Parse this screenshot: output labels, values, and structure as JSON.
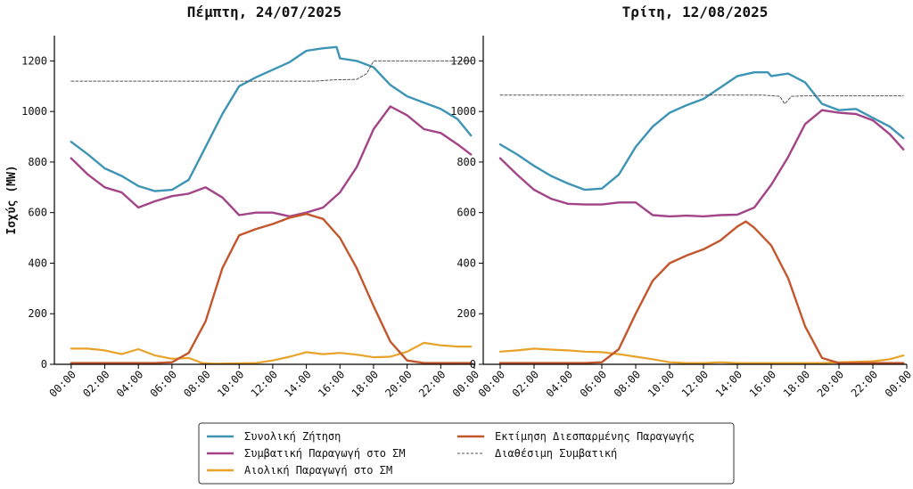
{
  "chart_data": [
    {
      "type": "line",
      "title": "Πέμπτη, 24/07/2025",
      "ylabel": "Ισχύς (MW)",
      "ylim": [
        0,
        1300
      ],
      "yticks": [
        0,
        200,
        400,
        600,
        800,
        1000,
        1200
      ],
      "xlim": [
        -1,
        24
      ],
      "xticks": [
        "00:00",
        "02:00",
        "04:00",
        "06:00",
        "08:00",
        "10:00",
        "12:00",
        "14:00",
        "16:00",
        "18:00",
        "20:00",
        "22:00",
        "00:00"
      ],
      "grid": false,
      "series": [
        {
          "name": "Συνολική Ζήτηση",
          "color": "#3d94b4",
          "dash": "",
          "width": 2.4,
          "points": [
            [
              0,
              880
            ],
            [
              1,
              830
            ],
            [
              2,
              775
            ],
            [
              3,
              745
            ],
            [
              4,
              705
            ],
            [
              5,
              685
            ],
            [
              6,
              690
            ],
            [
              7,
              730
            ],
            [
              8,
              860
            ],
            [
              9,
              990
            ],
            [
              10,
              1100
            ],
            [
              11,
              1135
            ],
            [
              12,
              1165
            ],
            [
              13,
              1195
            ],
            [
              14,
              1240
            ],
            [
              15,
              1250
            ],
            [
              15.8,
              1255
            ],
            [
              16,
              1210
            ],
            [
              17,
              1200
            ],
            [
              18,
              1175
            ],
            [
              19,
              1105
            ],
            [
              20,
              1060
            ],
            [
              21,
              1035
            ],
            [
              22,
              1010
            ],
            [
              23,
              970
            ],
            [
              23.8,
              905
            ]
          ]
        },
        {
          "name": "Συμβατική Παραγωγή στο ΣΜ",
          "color": "#a24487",
          "dash": "",
          "width": 2.4,
          "points": [
            [
              0,
              815
            ],
            [
              1,
              750
            ],
            [
              2,
              700
            ],
            [
              3,
              680
            ],
            [
              4,
              620
            ],
            [
              5,
              645
            ],
            [
              6,
              665
            ],
            [
              7,
              675
            ],
            [
              8,
              700
            ],
            [
              9,
              660
            ],
            [
              10,
              590
            ],
            [
              11,
              600
            ],
            [
              12,
              600
            ],
            [
              13,
              585
            ],
            [
              14,
              600
            ],
            [
              15,
              620
            ],
            [
              16,
              680
            ],
            [
              17,
              780
            ],
            [
              18,
              930
            ],
            [
              19,
              1020
            ],
            [
              20,
              985
            ],
            [
              21,
              930
            ],
            [
              22,
              915
            ],
            [
              23,
              870
            ],
            [
              23.8,
              830
            ]
          ]
        },
        {
          "name": "Αιολική Παραγωγή στο ΣΜ",
          "color": "#e8a22a",
          "dash": "",
          "width": 2.2,
          "points": [
            [
              0,
              62
            ],
            [
              1,
              62
            ],
            [
              2,
              55
            ],
            [
              3,
              40
            ],
            [
              4,
              60
            ],
            [
              5,
              35
            ],
            [
              6,
              22
            ],
            [
              7,
              25
            ],
            [
              7.8,
              5
            ],
            [
              8.5,
              2
            ],
            [
              11,
              5
            ],
            [
              12,
              15
            ],
            [
              13,
              30
            ],
            [
              14,
              48
            ],
            [
              15,
              40
            ],
            [
              16,
              45
            ],
            [
              17,
              38
            ],
            [
              18,
              28
            ],
            [
              19,
              30
            ],
            [
              20,
              50
            ],
            [
              21,
              85
            ],
            [
              22,
              75
            ],
            [
              23,
              70
            ],
            [
              23.8,
              70
            ]
          ]
        },
        {
          "name": "Εκτίμηση Διεσπαρμένης Παραγωγής",
          "color": "#c4562c",
          "dash": "",
          "width": 2.4,
          "points": [
            [
              0,
              5
            ],
            [
              1,
              5
            ],
            [
              2,
              5
            ],
            [
              3,
              5
            ],
            [
              4,
              5
            ],
            [
              5,
              5
            ],
            [
              6,
              8
            ],
            [
              7,
              45
            ],
            [
              8,
              170
            ],
            [
              9,
              380
            ],
            [
              10,
              510
            ],
            [
              11,
              535
            ],
            [
              12,
              555
            ],
            [
              13,
              580
            ],
            [
              14,
              595
            ],
            [
              15,
              575
            ],
            [
              16,
              500
            ],
            [
              16.5,
              440
            ],
            [
              17,
              380
            ],
            [
              18,
              230
            ],
            [
              19,
              90
            ],
            [
              20,
              15
            ],
            [
              21,
              5
            ],
            [
              22,
              5
            ],
            [
              23,
              5
            ],
            [
              23.8,
              5
            ]
          ]
        },
        {
          "name": "Διαθέσιμη Συμβατική",
          "color": "#555555",
          "dash": "3,2",
          "width": 1,
          "points": [
            [
              0,
              1120
            ],
            [
              14.5,
              1120
            ],
            [
              15.6,
              1125
            ],
            [
              17,
              1127
            ],
            [
              17.6,
              1150
            ],
            [
              18,
              1200
            ],
            [
              19,
              1200
            ],
            [
              23.8,
              1200
            ]
          ]
        }
      ]
    },
    {
      "type": "line",
      "title": "Τρίτη, 12/08/2025",
      "ylabel": "",
      "ylim": [
        0,
        1300
      ],
      "yticks": [
        0,
        200,
        400,
        600,
        800,
        1000,
        1200
      ],
      "xlim": [
        -1,
        24
      ],
      "xticks": [
        "00:00",
        "02:00",
        "04:00",
        "06:00",
        "08:00",
        "10:00",
        "12:00",
        "14:00",
        "16:00",
        "18:00",
        "20:00",
        "22:00",
        "00:00"
      ],
      "grid": false,
      "series": [
        {
          "name": "Συνολική Ζήτηση",
          "color": "#3d94b4",
          "dash": "",
          "width": 2.4,
          "points": [
            [
              0,
              870
            ],
            [
              1,
              830
            ],
            [
              2,
              785
            ],
            [
              3,
              745
            ],
            [
              4,
              715
            ],
            [
              5,
              690
            ],
            [
              6,
              695
            ],
            [
              7,
              750
            ],
            [
              8,
              860
            ],
            [
              9,
              940
            ],
            [
              10,
              995
            ],
            [
              11,
              1025
            ],
            [
              12,
              1050
            ],
            [
              13,
              1095
            ],
            [
              14,
              1140
            ],
            [
              15,
              1155
            ],
            [
              15.8,
              1155
            ],
            [
              16,
              1140
            ],
            [
              17,
              1150
            ],
            [
              18,
              1115
            ],
            [
              19,
              1030
            ],
            [
              20,
              1005
            ],
            [
              21,
              1010
            ],
            [
              22,
              975
            ],
            [
              23,
              940
            ],
            [
              23.8,
              895
            ]
          ]
        },
        {
          "name": "Συμβατική Παραγωγή στο ΣΜ",
          "color": "#a24487",
          "dash": "",
          "width": 2.4,
          "points": [
            [
              0,
              815
            ],
            [
              1,
              750
            ],
            [
              2,
              690
            ],
            [
              3,
              655
            ],
            [
              4,
              635
            ],
            [
              5,
              632
            ],
            [
              6,
              632
            ],
            [
              7,
              640
            ],
            [
              8,
              640
            ],
            [
              9,
              590
            ],
            [
              10,
              585
            ],
            [
              11,
              588
            ],
            [
              12,
              585
            ],
            [
              13,
              590
            ],
            [
              14,
              592
            ],
            [
              15,
              620
            ],
            [
              16,
              710
            ],
            [
              17,
              820
            ],
            [
              18,
              950
            ],
            [
              19,
              1005
            ],
            [
              20,
              995
            ],
            [
              21,
              990
            ],
            [
              22,
              965
            ],
            [
              23,
              910
            ],
            [
              23.8,
              850
            ]
          ]
        },
        {
          "name": "Αιολική Παραγωγή στο ΣΜ",
          "color": "#e8a22a",
          "dash": "",
          "width": 2.2,
          "points": [
            [
              0,
              50
            ],
            [
              1,
              55
            ],
            [
              2,
              62
            ],
            [
              3,
              58
            ],
            [
              4,
              55
            ],
            [
              5,
              50
            ],
            [
              6,
              48
            ],
            [
              7,
              40
            ],
            [
              8,
              30
            ],
            [
              9,
              20
            ],
            [
              10,
              8
            ],
            [
              11,
              5
            ],
            [
              12,
              5
            ],
            [
              13,
              8
            ],
            [
              14,
              5
            ],
            [
              15,
              5
            ],
            [
              16,
              5
            ],
            [
              17,
              5
            ],
            [
              18,
              5
            ],
            [
              19,
              5
            ],
            [
              20,
              8
            ],
            [
              21,
              10
            ],
            [
              22,
              12
            ],
            [
              23,
              20
            ],
            [
              23.8,
              35
            ]
          ]
        },
        {
          "name": "Εκτίμηση Διεσπαρμένης Παραγωγής",
          "color": "#c4562c",
          "dash": "",
          "width": 2.4,
          "points": [
            [
              0,
              5
            ],
            [
              1,
              5
            ],
            [
              2,
              5
            ],
            [
              3,
              5
            ],
            [
              4,
              5
            ],
            [
              5,
              5
            ],
            [
              6,
              8
            ],
            [
              7,
              60
            ],
            [
              8,
              200
            ],
            [
              9,
              330
            ],
            [
              10,
              400
            ],
            [
              11,
              430
            ],
            [
              12,
              455
            ],
            [
              13,
              490
            ],
            [
              14,
              545
            ],
            [
              14.5,
              565
            ],
            [
              15,
              540
            ],
            [
              16,
              470
            ],
            [
              17,
              340
            ],
            [
              18,
              150
            ],
            [
              19,
              25
            ],
            [
              20,
              5
            ],
            [
              21,
              5
            ],
            [
              22,
              5
            ],
            [
              23,
              5
            ],
            [
              23.8,
              5
            ]
          ]
        },
        {
          "name": "Διαθέσιμη Συμβατική",
          "color": "#555555",
          "dash": "3,2",
          "width": 1,
          "points": [
            [
              0,
              1065
            ],
            [
              15.5,
              1065
            ],
            [
              16.5,
              1060
            ],
            [
              16.8,
              1030
            ],
            [
              17.2,
              1060
            ],
            [
              18,
              1062
            ],
            [
              23.8,
              1062
            ]
          ]
        }
      ]
    }
  ],
  "legend": {
    "placement": "bottom-center",
    "items": [
      {
        "label": "Συνολική Ζήτηση",
        "color": "#3d94b4",
        "dash": ""
      },
      {
        "label": "Συμβατική Παραγωγή στο ΣΜ",
        "color": "#a24487",
        "dash": ""
      },
      {
        "label": "Αιολική Παραγωγή στο ΣΜ",
        "color": "#e8a22a",
        "dash": ""
      },
      {
        "label": "Εκτίμηση Διεσπαρμένης Παραγωγής",
        "color": "#c4562c",
        "dash": ""
      },
      {
        "label": "Διαθέσιμη Συμβατική",
        "color": "#555555",
        "dash": "3,2"
      }
    ]
  }
}
